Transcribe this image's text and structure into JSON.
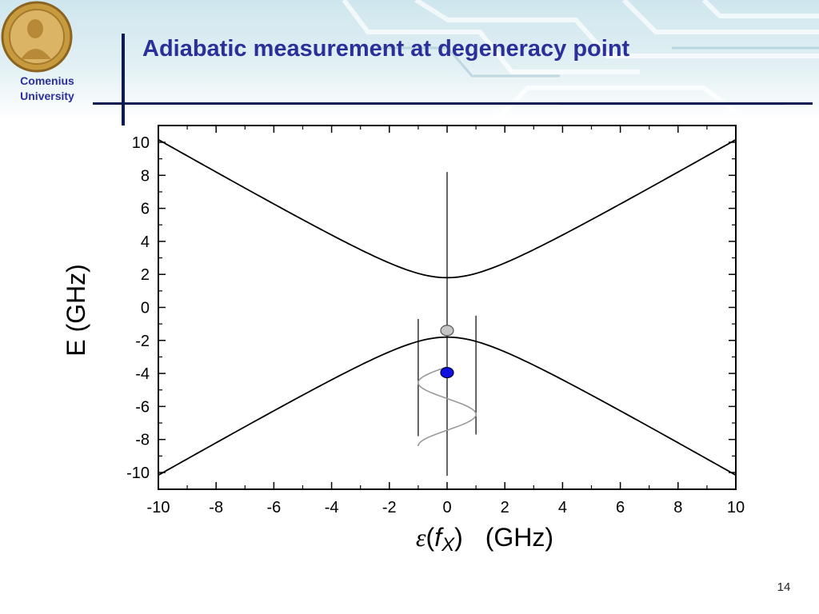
{
  "header": {
    "logo_line1": "Comenius",
    "logo_line2": "University",
    "title": "Adiabatic measurement at degeneracy point"
  },
  "footer": {
    "slide_number": "14"
  },
  "chart_data": {
    "type": "line",
    "title": "",
    "xlabel_symbol": "ε",
    "xlabel_open": "(",
    "xlabel_var": "f",
    "xlabel_sub": "X",
    "xlabel_close": ")",
    "xlabel_unit": "(GHz)",
    "ylabel": "E (GHz)",
    "xlim": [
      -10,
      10
    ],
    "ylim": [
      -11,
      11
    ],
    "xticks": [
      -10,
      -8,
      -6,
      -4,
      -2,
      0,
      2,
      4,
      6,
      8,
      10
    ],
    "yticks": [
      -10,
      -8,
      -6,
      -4,
      -2,
      0,
      2,
      4,
      6,
      8,
      10
    ],
    "grid": false,
    "gap_ghz": 1.8,
    "series": [
      {
        "role": "upper-band",
        "x": [
          -10,
          -8,
          -6,
          -4,
          -3,
          -2,
          -1,
          -0.5,
          0,
          0.5,
          1,
          2,
          3,
          4,
          6,
          8,
          10
        ],
        "y": [
          10.16,
          8.2,
          6.26,
          4.39,
          3.5,
          2.69,
          2.06,
          1.87,
          1.8,
          1.87,
          2.06,
          2.69,
          3.5,
          4.39,
          6.26,
          8.2,
          10.16
        ]
      },
      {
        "role": "lower-band",
        "x": [
          -10,
          -8,
          -6,
          -4,
          -3,
          -2,
          -1,
          -0.5,
          0,
          0.5,
          1,
          2,
          3,
          4,
          6,
          8,
          10
        ],
        "y": [
          -10.16,
          -8.2,
          -6.26,
          -4.39,
          -3.5,
          -2.69,
          -2.06,
          -1.87,
          -1.8,
          -1.87,
          -2.06,
          -2.69,
          -3.5,
          -4.39,
          -6.26,
          -8.2,
          -10.16
        ]
      }
    ],
    "annotations": {
      "bias_line": {
        "x": 0,
        "y_from": 8.2,
        "y_to": -10.2
      },
      "modulation_bounds": [
        {
          "x": -1,
          "y_from": -0.7,
          "y_to": -7.8
        },
        {
          "x": 1,
          "y_from": -0.5,
          "y_to": -7.7
        }
      ],
      "sine_wave": {
        "center_x": 0,
        "amplitude": 1,
        "y_top": -3.6,
        "y_bottom": -8.4,
        "cycles": 1.25
      },
      "markers": [
        {
          "x": 0,
          "y": -1.4,
          "color": "#c6c6c6"
        },
        {
          "x": 0,
          "y": -3.95,
          "color": "#1010e0"
        }
      ]
    }
  }
}
